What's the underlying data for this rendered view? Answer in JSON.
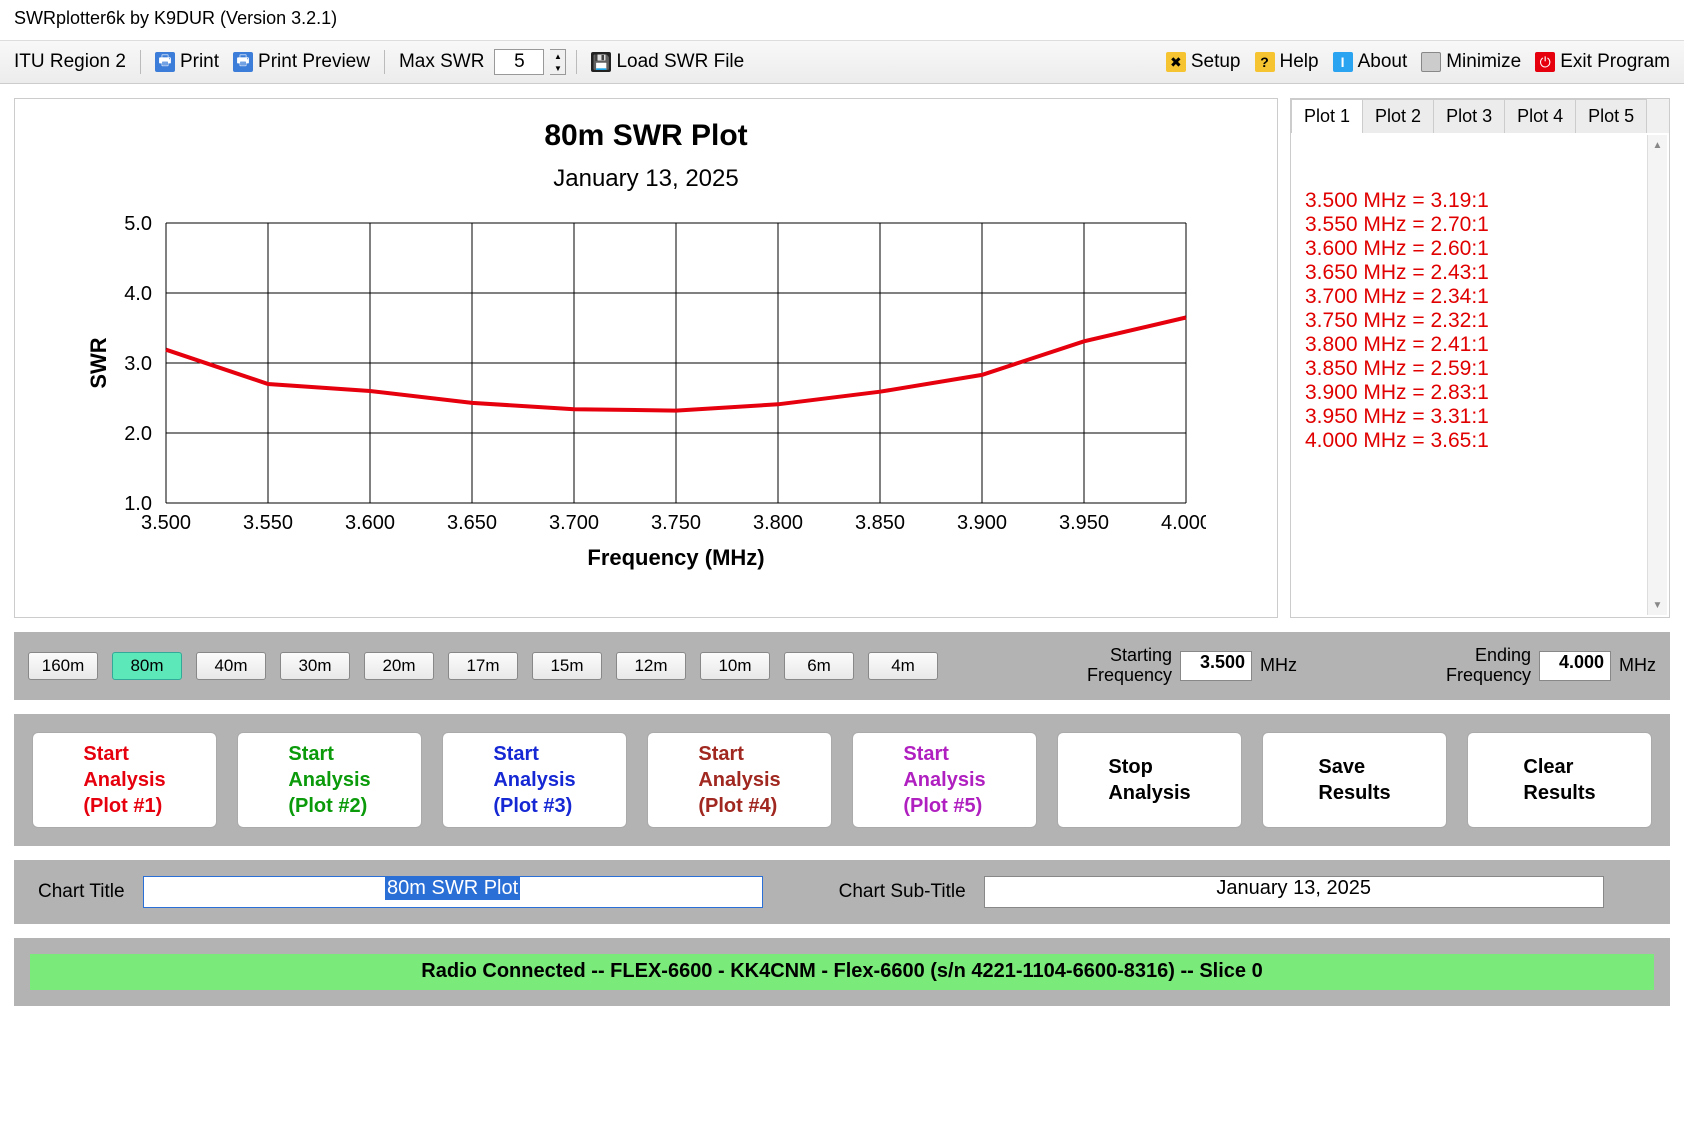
{
  "window": {
    "title": "SWRplotter6k by K9DUR (Version 3.2.1)"
  },
  "toolbar": {
    "region": "ITU Region 2",
    "print": "Print",
    "print_preview": "Print Preview",
    "max_swr_label": "Max SWR",
    "max_swr_value": "5",
    "load_file": "Load SWR File",
    "setup": "Setup",
    "help": "Help",
    "about": "About",
    "minimize": "Minimize",
    "exit": "Exit Program"
  },
  "chart": {
    "title": "80m SWR Plot",
    "subtitle": "January 13, 2025",
    "ylabel": "SWR",
    "xlabel": "Frequency (MHz)",
    "type": "line",
    "xlim": [
      3.5,
      4.0
    ],
    "ylim": [
      1.0,
      5.0
    ],
    "xticks": [
      "3.500",
      "3.550",
      "3.600",
      "3.650",
      "3.700",
      "3.750",
      "3.800",
      "3.850",
      "3.900",
      "3.950",
      "4.000"
    ],
    "yticks": [
      "1.0",
      "2.0",
      "3.0",
      "4.0",
      "5.0"
    ],
    "line_color": "#e6000e",
    "line_width": 4,
    "grid_color": "#000000",
    "background_color": "#ffffff",
    "series": [
      {
        "x": 3.5,
        "y": 3.19
      },
      {
        "x": 3.55,
        "y": 2.7
      },
      {
        "x": 3.6,
        "y": 2.6
      },
      {
        "x": 3.65,
        "y": 2.43
      },
      {
        "x": 3.7,
        "y": 2.34
      },
      {
        "x": 3.75,
        "y": 2.32
      },
      {
        "x": 3.8,
        "y": 2.41
      },
      {
        "x": 3.85,
        "y": 2.59
      },
      {
        "x": 3.9,
        "y": 2.83
      },
      {
        "x": 3.95,
        "y": 3.31
      },
      {
        "x": 4.0,
        "y": 3.65
      }
    ]
  },
  "side": {
    "tabs": [
      "Plot 1",
      "Plot 2",
      "Plot 3",
      "Plot 4",
      "Plot 5"
    ],
    "active_tab": 0,
    "rows": [
      "3.500 MHz = 3.19:1",
      "3.550 MHz = 2.70:1",
      "3.600 MHz = 2.60:1",
      "3.650 MHz = 2.43:1",
      "3.700 MHz = 2.34:1",
      "3.750 MHz = 2.32:1",
      "3.800 MHz = 2.41:1",
      "3.850 MHz = 2.59:1",
      "3.900 MHz = 2.83:1",
      "3.950 MHz = 3.31:1",
      "4.000 MHz = 3.65:1"
    ]
  },
  "bands": {
    "list": [
      "160m",
      "80m",
      "40m",
      "30m",
      "20m",
      "17m",
      "15m",
      "12m",
      "10m",
      "6m",
      "4m"
    ],
    "active": "80m",
    "start_label": "Starting\nFrequency",
    "start_value": "3.500",
    "end_label": "Ending\nFrequency",
    "end_value": "4.000",
    "unit": "MHz"
  },
  "actions": {
    "plots": [
      {
        "line1": "Start",
        "line2": "Analysis",
        "line3": "(Plot #1)",
        "color": "#e6000e"
      },
      {
        "line1": "Start",
        "line2": "Analysis",
        "line3": "(Plot #2)",
        "color": "#0a9a0a"
      },
      {
        "line1": "Start",
        "line2": "Analysis",
        "line3": "(Plot #3)",
        "color": "#1528d4"
      },
      {
        "line1": "Start",
        "line2": "Analysis",
        "line3": "(Plot #4)",
        "color": "#a02820"
      },
      {
        "line1": "Start",
        "line2": "Analysis",
        "line3": "(Plot #5)",
        "color": "#b020c0"
      }
    ],
    "stop": "Stop\nAnalysis",
    "save": "Save\nResults",
    "clear": "Clear\nResults"
  },
  "titles": {
    "chart_title_label": "Chart Title",
    "chart_title_value": "80m SWR Plot",
    "chart_subtitle_label": "Chart Sub-Title",
    "chart_subtitle_value": "January 13, 2025"
  },
  "status": {
    "text": "Radio Connected -- FLEX-6600 - KK4CNM - Flex-6600  (s/n 4221-1104-6600-8316) -- Slice 0"
  }
}
